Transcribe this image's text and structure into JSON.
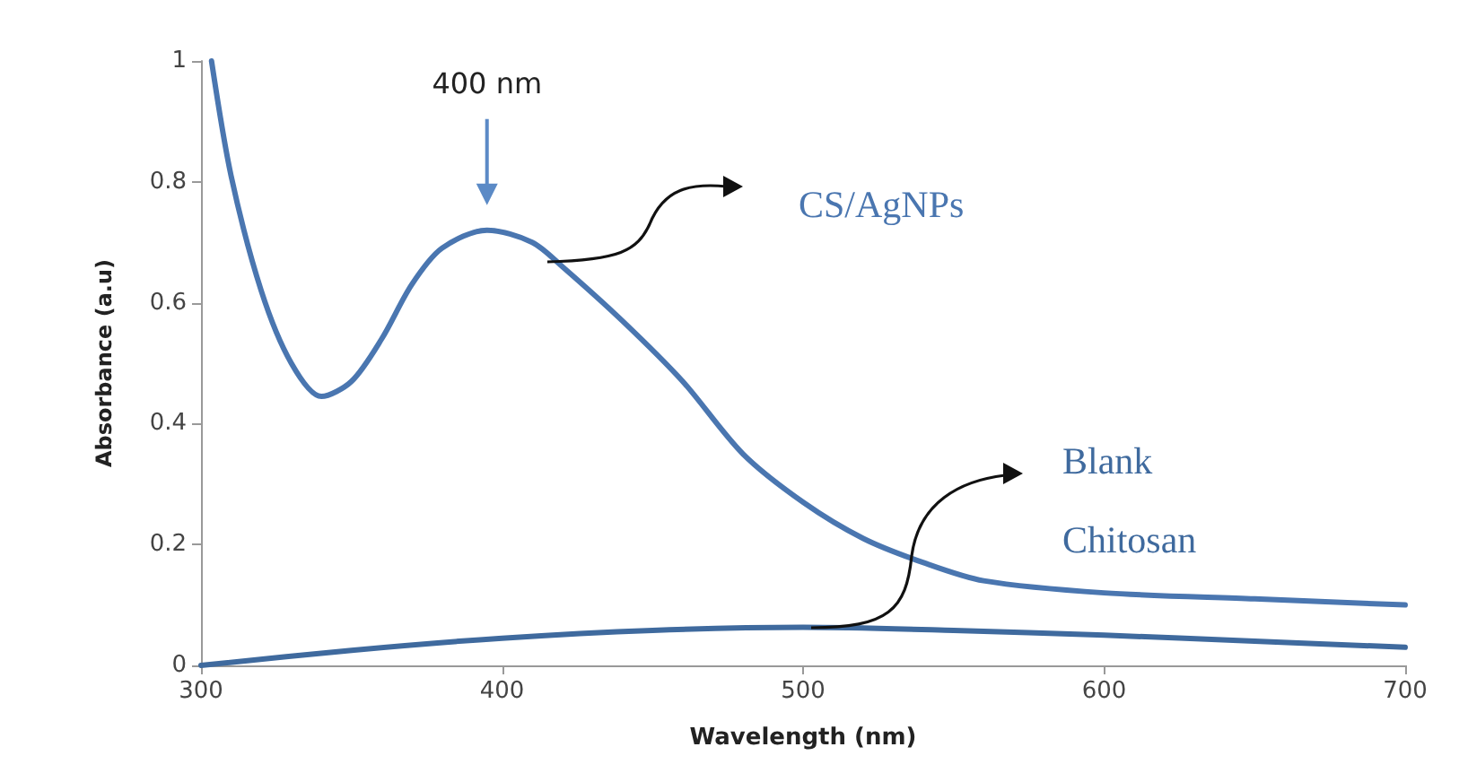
{
  "chart_data": {
    "type": "line",
    "xlabel": "Wavelength (nm)",
    "ylabel": "Absorbance (a.u)",
    "xlim": [
      300,
      700
    ],
    "xticks": [
      300,
      400,
      500,
      600,
      700
    ],
    "ylim": [
      0,
      1
    ],
    "yticks": [
      0,
      0.2,
      0.4,
      0.6,
      0.8,
      1
    ],
    "grid": false,
    "legend": false,
    "marker": "none",
    "line_style": "solid",
    "annotations": [
      "400 nm"
    ],
    "series": [
      {
        "name": "CS/AgNPs",
        "color": "#4a76b0",
        "x": [
          303.5,
          310,
          320,
          330,
          340,
          350,
          360,
          370,
          380,
          395,
          410,
          420,
          440,
          460,
          480,
          500,
          520,
          540,
          560,
          600,
          650,
          700
        ],
        "values": [
          1.0,
          0.81,
          0.62,
          0.5,
          0.445,
          0.47,
          0.54,
          0.63,
          0.69,
          0.72,
          0.7,
          0.66,
          0.57,
          0.47,
          0.35,
          0.27,
          0.21,
          0.17,
          0.14,
          0.12,
          0.11,
          0.1
        ]
      },
      {
        "name": "Blank Chitosan",
        "color": "#3f6a9e",
        "x": [
          300,
          350,
          400,
          450,
          500,
          550,
          600,
          650,
          700
        ],
        "values": [
          0,
          0.025,
          0.045,
          0.058,
          0.063,
          0.058,
          0.05,
          0.04,
          0.03
        ]
      }
    ]
  }
}
